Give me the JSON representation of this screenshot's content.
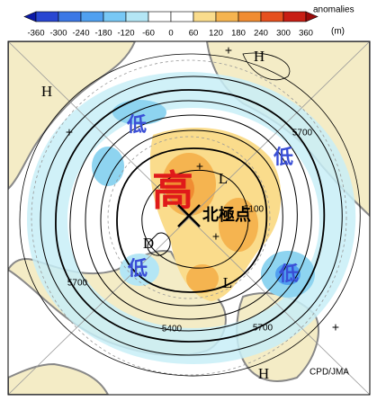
{
  "colorbar": {
    "title": "anomalies",
    "units": "(m)",
    "ticks": [
      -360,
      -300,
      -240,
      -180,
      -120,
      -60,
      0,
      60,
      120,
      180,
      240,
      300,
      360
    ],
    "colors": [
      "#0c1aa8",
      "#2846d2",
      "#3c78e6",
      "#50a0f0",
      "#78c8f5",
      "#b4e6f5",
      "#ffffff",
      "#ffffff",
      "#fadc8c",
      "#f5b450",
      "#f08c32",
      "#e6501e",
      "#c81e14",
      "#9a0a0a"
    ]
  },
  "map": {
    "highs": [
      "H",
      "H",
      "H"
    ],
    "lows": [
      "L",
      "L"
    ],
    "low_kanji": [
      "低",
      "低",
      "低",
      "低"
    ],
    "high_kanji": "高",
    "pole_label": "北極点",
    "extra_label": "D",
    "contour_labels": [
      5700,
      5700,
      5700,
      5400,
      5100
    ],
    "plus_marks": [
      "+",
      "+",
      "+",
      "+",
      "+"
    ],
    "credit": "CPD/JMA"
  }
}
